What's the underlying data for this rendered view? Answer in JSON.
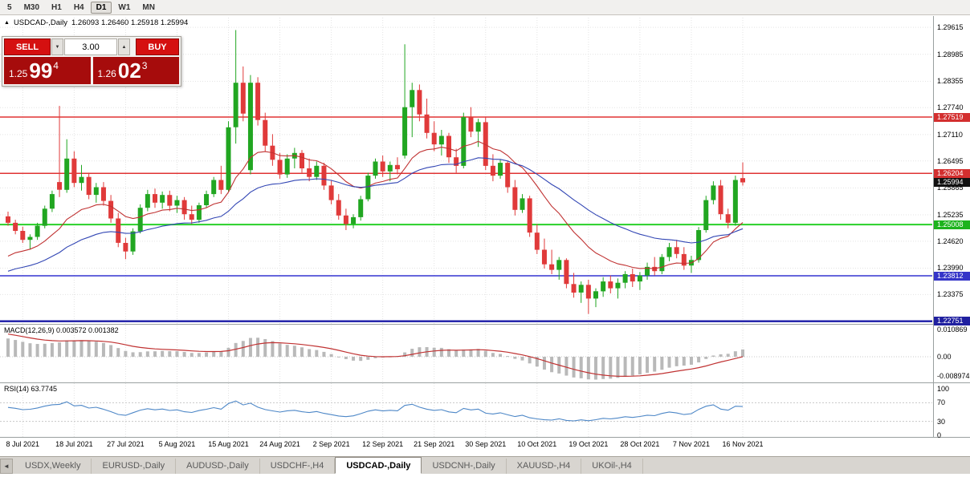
{
  "toolbar": {
    "timeframes": [
      "5",
      "M30",
      "H1",
      "H4",
      "D1",
      "W1",
      "MN"
    ],
    "active_timeframe": "D1"
  },
  "chart_header": {
    "direction_glyph": "▲",
    "symbol": "USDCAD-,Daily",
    "ohlc": "1.26093 1.26460 1.25918 1.25994"
  },
  "trade_panel": {
    "sell_label": "SELL",
    "buy_label": "BUY",
    "volume": "3.00",
    "spin_down_glyph": "▼",
    "spin_up_glyph": "▲",
    "bid": {
      "prefix": "1.25",
      "big": "99",
      "sup": "4"
    },
    "ask": {
      "prefix": "1.26",
      "big": "02",
      "sup": "3"
    }
  },
  "indicators": {
    "macd": {
      "label": "MACD(12,26,9) 0.003572 0.001382",
      "axis": [
        {
          "v": 0.010869,
          "t": "0.010869"
        },
        {
          "v": 0,
          "t": "0.00"
        },
        {
          "v": -0.008974,
          "t": "-0.008974"
        }
      ]
    },
    "rsi": {
      "label": "RSI(14) 63.7745",
      "axis": [
        {
          "v": 100,
          "t": "100"
        },
        {
          "v": 70,
          "t": "70"
        },
        {
          "v": 30,
          "t": "30"
        },
        {
          "v": 0,
          "t": "0"
        }
      ],
      "levels": [
        70,
        30
      ]
    }
  },
  "price_axis": {
    "labels": [
      "1.29615",
      "1.28985",
      "1.28355",
      "1.27740",
      "1.27110",
      "1.26495",
      "1.25865",
      "1.25235",
      "1.24620",
      "1.23990",
      "1.23375"
    ],
    "markers": [
      {
        "price": 1.27519,
        "label": "1.27519",
        "color": "#d32f2f"
      },
      {
        "price": 1.26204,
        "label": "1.26204",
        "color": "#d32f2f"
      },
      {
        "price": 1.25994,
        "label": "1.25994",
        "color": "#111111"
      },
      {
        "price": 1.25008,
        "label": "1.25008",
        "color": "#1db31d"
      },
      {
        "price": 1.23812,
        "label": "1.23812",
        "color": "#3535c8"
      },
      {
        "price": 1.22751,
        "label": "1.22751",
        "color": "#2020a0"
      }
    ]
  },
  "hlines": [
    {
      "price": 1.27519,
      "color": "#e03333",
      "width": 1.6
    },
    {
      "price": 1.26204,
      "color": "#e03333",
      "width": 1.6
    },
    {
      "price": 1.25008,
      "color": "#28d028",
      "width": 2
    },
    {
      "price": 1.23812,
      "color": "#3333d0",
      "width": 1.6
    },
    {
      "price": 1.22751,
      "color": "#1a1aa6",
      "width": 2.4
    }
  ],
  "date_axis": [
    "8 Jul 2021",
    "18 Jul 2021",
    "27 Jul 2021",
    "5 Aug 2021",
    "15 Aug 2021",
    "24 Aug 2021",
    "2 Sep 2021",
    "12 Sep 2021",
    "21 Sep 2021",
    "30 Sep 2021",
    "10 Oct 2021",
    "19 Oct 2021",
    "28 Oct 2021",
    "7 Nov 2021",
    "16 Nov 2021"
  ],
  "tabs": {
    "items": [
      "USDX,Weekly",
      "EURUSD-,Daily",
      "AUDUSD-,Daily",
      "USDCHF-,H4",
      "USDCAD-,Daily",
      "USDCNH-,Daily",
      "XAUUSD-,H4",
      "UKOil-,H4"
    ],
    "active": "USDCAD-,Daily"
  },
  "chart_data": {
    "type": "candlestick",
    "symbol": "USDCAD",
    "timeframe": "Daily",
    "current_ohlc": {
      "open": 1.26093,
      "high": 1.2646,
      "low": 1.25918,
      "close": 1.25994
    },
    "visible_range": {
      "price_min": 1.2273,
      "price_max": 1.2985,
      "date_start": "8 Jul 2021",
      "date_end": "16 Nov 2021"
    },
    "colors": {
      "up": "#21a621",
      "down": "#e03a3a",
      "ma_fast": "#c03232",
      "ma_slow": "#3246b4",
      "histogram": "#b9b9b9",
      "macd_signal": "#c03232",
      "rsi_line": "#4d87c7"
    },
    "date_label_indices": [
      2,
      9,
      16,
      23,
      30,
      37,
      44,
      51,
      58,
      65,
      72,
      79,
      86,
      93,
      100
    ],
    "candles": [
      [
        1.252,
        1.2531,
        1.2498,
        1.2505
      ],
      [
        1.2505,
        1.2512,
        1.2478,
        1.2486
      ],
      [
        1.2486,
        1.2496,
        1.2458,
        1.2465
      ],
      [
        1.2465,
        1.2478,
        1.2442,
        1.2472
      ],
      [
        1.2472,
        1.2505,
        1.2465,
        1.2498
      ],
      [
        1.2498,
        1.2545,
        1.2492,
        1.2538
      ],
      [
        1.2538,
        1.258,
        1.253,
        1.2572
      ],
      [
        1.26,
        1.2778,
        1.2565,
        1.2582
      ],
      [
        1.2582,
        1.27,
        1.2575,
        1.2655
      ],
      [
        1.2655,
        1.2672,
        1.2588,
        1.2598
      ],
      [
        1.2598,
        1.264,
        1.258,
        1.2612
      ],
      [
        1.2612,
        1.2622,
        1.256,
        1.257
      ],
      [
        1.257,
        1.2598,
        1.2552,
        1.2588
      ],
      [
        1.2588,
        1.26,
        1.2545,
        1.2556
      ],
      [
        1.2556,
        1.257,
        1.2505,
        1.2515
      ],
      [
        1.2515,
        1.2528,
        1.2448,
        1.2458
      ],
      [
        1.2458,
        1.247,
        1.242,
        1.2438
      ],
      [
        1.2438,
        1.2492,
        1.243,
        1.2485
      ],
      [
        1.2485,
        1.2548,
        1.248,
        1.254
      ],
      [
        1.254,
        1.2582,
        1.2532,
        1.2572
      ],
      [
        1.2572,
        1.2585,
        1.254,
        1.2552
      ],
      [
        1.2552,
        1.2578,
        1.2538,
        1.257
      ],
      [
        1.257,
        1.258,
        1.2532,
        1.2545
      ],
      [
        1.2545,
        1.2568,
        1.2528,
        1.2558
      ],
      [
        1.2558,
        1.2565,
        1.2512,
        1.2525
      ],
      [
        1.2525,
        1.2545,
        1.2502,
        1.2512
      ],
      [
        1.2512,
        1.2552,
        1.2505,
        1.2546
      ],
      [
        1.2546,
        1.258,
        1.254,
        1.2572
      ],
      [
        1.2572,
        1.2612,
        1.2565,
        1.2605
      ],
      [
        1.2605,
        1.2638,
        1.2572,
        1.2582
      ],
      [
        1.2582,
        1.2742,
        1.2578,
        1.2728
      ],
      [
        1.2728,
        1.2955,
        1.269,
        1.2832
      ],
      [
        1.2832,
        1.287,
        1.2742,
        1.276
      ],
      [
        1.2628,
        1.285,
        1.2618,
        1.2832
      ],
      [
        1.2832,
        1.2845,
        1.2732,
        1.2745
      ],
      [
        1.2745,
        1.2762,
        1.2672,
        1.2685
      ],
      [
        1.2685,
        1.2712,
        1.2638,
        1.2652
      ],
      [
        1.2652,
        1.2668,
        1.2608,
        1.2618
      ],
      [
        1.2618,
        1.2665,
        1.261,
        1.2655
      ],
      [
        1.2655,
        1.268,
        1.2632,
        1.2668
      ],
      [
        1.2668,
        1.2675,
        1.2622,
        1.2632
      ],
      [
        1.2632,
        1.2655,
        1.2602,
        1.2612
      ],
      [
        1.2612,
        1.2648,
        1.2605,
        1.2638
      ],
      [
        1.2638,
        1.2645,
        1.2582,
        1.2592
      ],
      [
        1.2592,
        1.2605,
        1.2548,
        1.2558
      ],
      [
        1.2558,
        1.2572,
        1.2512,
        1.2522
      ],
      [
        1.2522,
        1.2538,
        1.2488,
        1.2502
      ],
      [
        1.2502,
        1.2525,
        1.2492,
        1.2518
      ],
      [
        1.2518,
        1.2568,
        1.251,
        1.256
      ],
      [
        1.256,
        1.2622,
        1.2555,
        1.2615
      ],
      [
        1.2615,
        1.2655,
        1.2608,
        1.2648
      ],
      [
        1.2648,
        1.2662,
        1.2612,
        1.2625
      ],
      [
        1.2625,
        1.2648,
        1.2602,
        1.264
      ],
      [
        1.264,
        1.2658,
        1.2618,
        1.263
      ],
      [
        1.2662,
        1.2922,
        1.2655,
        1.2775
      ],
      [
        1.2775,
        1.2832,
        1.2705,
        1.2815
      ],
      [
        1.2815,
        1.2828,
        1.2742,
        1.2758
      ],
      [
        1.2758,
        1.2795,
        1.2702,
        1.2715
      ],
      [
        1.2715,
        1.2742,
        1.2672,
        1.2688
      ],
      [
        1.2688,
        1.2722,
        1.2662,
        1.2708
      ],
      [
        1.2708,
        1.2715,
        1.2645,
        1.2658
      ],
      [
        1.2658,
        1.2678,
        1.2622,
        1.2638
      ],
      [
        1.2638,
        1.2762,
        1.2632,
        1.2752
      ],
      [
        1.2752,
        1.2775,
        1.2705,
        1.2718
      ],
      [
        1.2718,
        1.2748,
        1.2682,
        1.274
      ],
      [
        1.274,
        1.2752,
        1.2628,
        1.2638
      ],
      [
        1.2638,
        1.2665,
        1.2602,
        1.2615
      ],
      [
        1.2615,
        1.2652,
        1.2608,
        1.2645
      ],
      [
        1.2645,
        1.265,
        1.2575,
        1.2588
      ],
      [
        1.2588,
        1.2605,
        1.2522,
        1.2535
      ],
      [
        1.2535,
        1.2572,
        1.2528,
        1.2562
      ],
      [
        1.2562,
        1.2568,
        1.2472,
        1.2482
      ],
      [
        1.2482,
        1.2502,
        1.2432,
        1.2442
      ],
      [
        1.2442,
        1.2468,
        1.2398,
        1.2408
      ],
      [
        1.2408,
        1.2442,
        1.2385,
        1.2395
      ],
      [
        1.2395,
        1.2425,
        1.2372,
        1.2418
      ],
      [
        1.2418,
        1.2422,
        1.2352,
        1.2362
      ],
      [
        1.2362,
        1.2388,
        1.233,
        1.2342
      ],
      [
        1.2342,
        1.2368,
        1.2318,
        1.236
      ],
      [
        1.236,
        1.2372,
        1.2292,
        1.2328
      ],
      [
        1.2328,
        1.2352,
        1.2308,
        1.2345
      ],
      [
        1.2345,
        1.2378,
        1.2332,
        1.2368
      ],
      [
        1.2368,
        1.2382,
        1.234,
        1.2352
      ],
      [
        1.2352,
        1.2375,
        1.2328,
        1.2365
      ],
      [
        1.2365,
        1.2392,
        1.2352,
        1.2385
      ],
      [
        1.2385,
        1.2398,
        1.2355,
        1.2368
      ],
      [
        1.2368,
        1.239,
        1.2348,
        1.2382
      ],
      [
        1.2382,
        1.2412,
        1.2372,
        1.2402
      ],
      [
        1.2402,
        1.2425,
        1.2382,
        1.2392
      ],
      [
        1.2392,
        1.2432,
        1.2385,
        1.2425
      ],
      [
        1.2425,
        1.2458,
        1.2415,
        1.2448
      ],
      [
        1.2448,
        1.2465,
        1.2422,
        1.2432
      ],
      [
        1.2432,
        1.2448,
        1.2395,
        1.2405
      ],
      [
        1.2405,
        1.2428,
        1.2388,
        1.2418
      ],
      [
        1.2418,
        1.2495,
        1.2412,
        1.2488
      ],
      [
        1.2488,
        1.2568,
        1.2482,
        1.2558
      ],
      [
        1.2558,
        1.2602,
        1.2548,
        1.2592
      ],
      [
        1.2592,
        1.2605,
        1.2512,
        1.2525
      ],
      [
        1.2525,
        1.2538,
        1.2492,
        1.2505
      ],
      [
        1.2505,
        1.2615,
        1.2498,
        1.2605
      ],
      [
        1.26093,
        1.2646,
        1.25918,
        1.25994
      ]
    ]
  }
}
